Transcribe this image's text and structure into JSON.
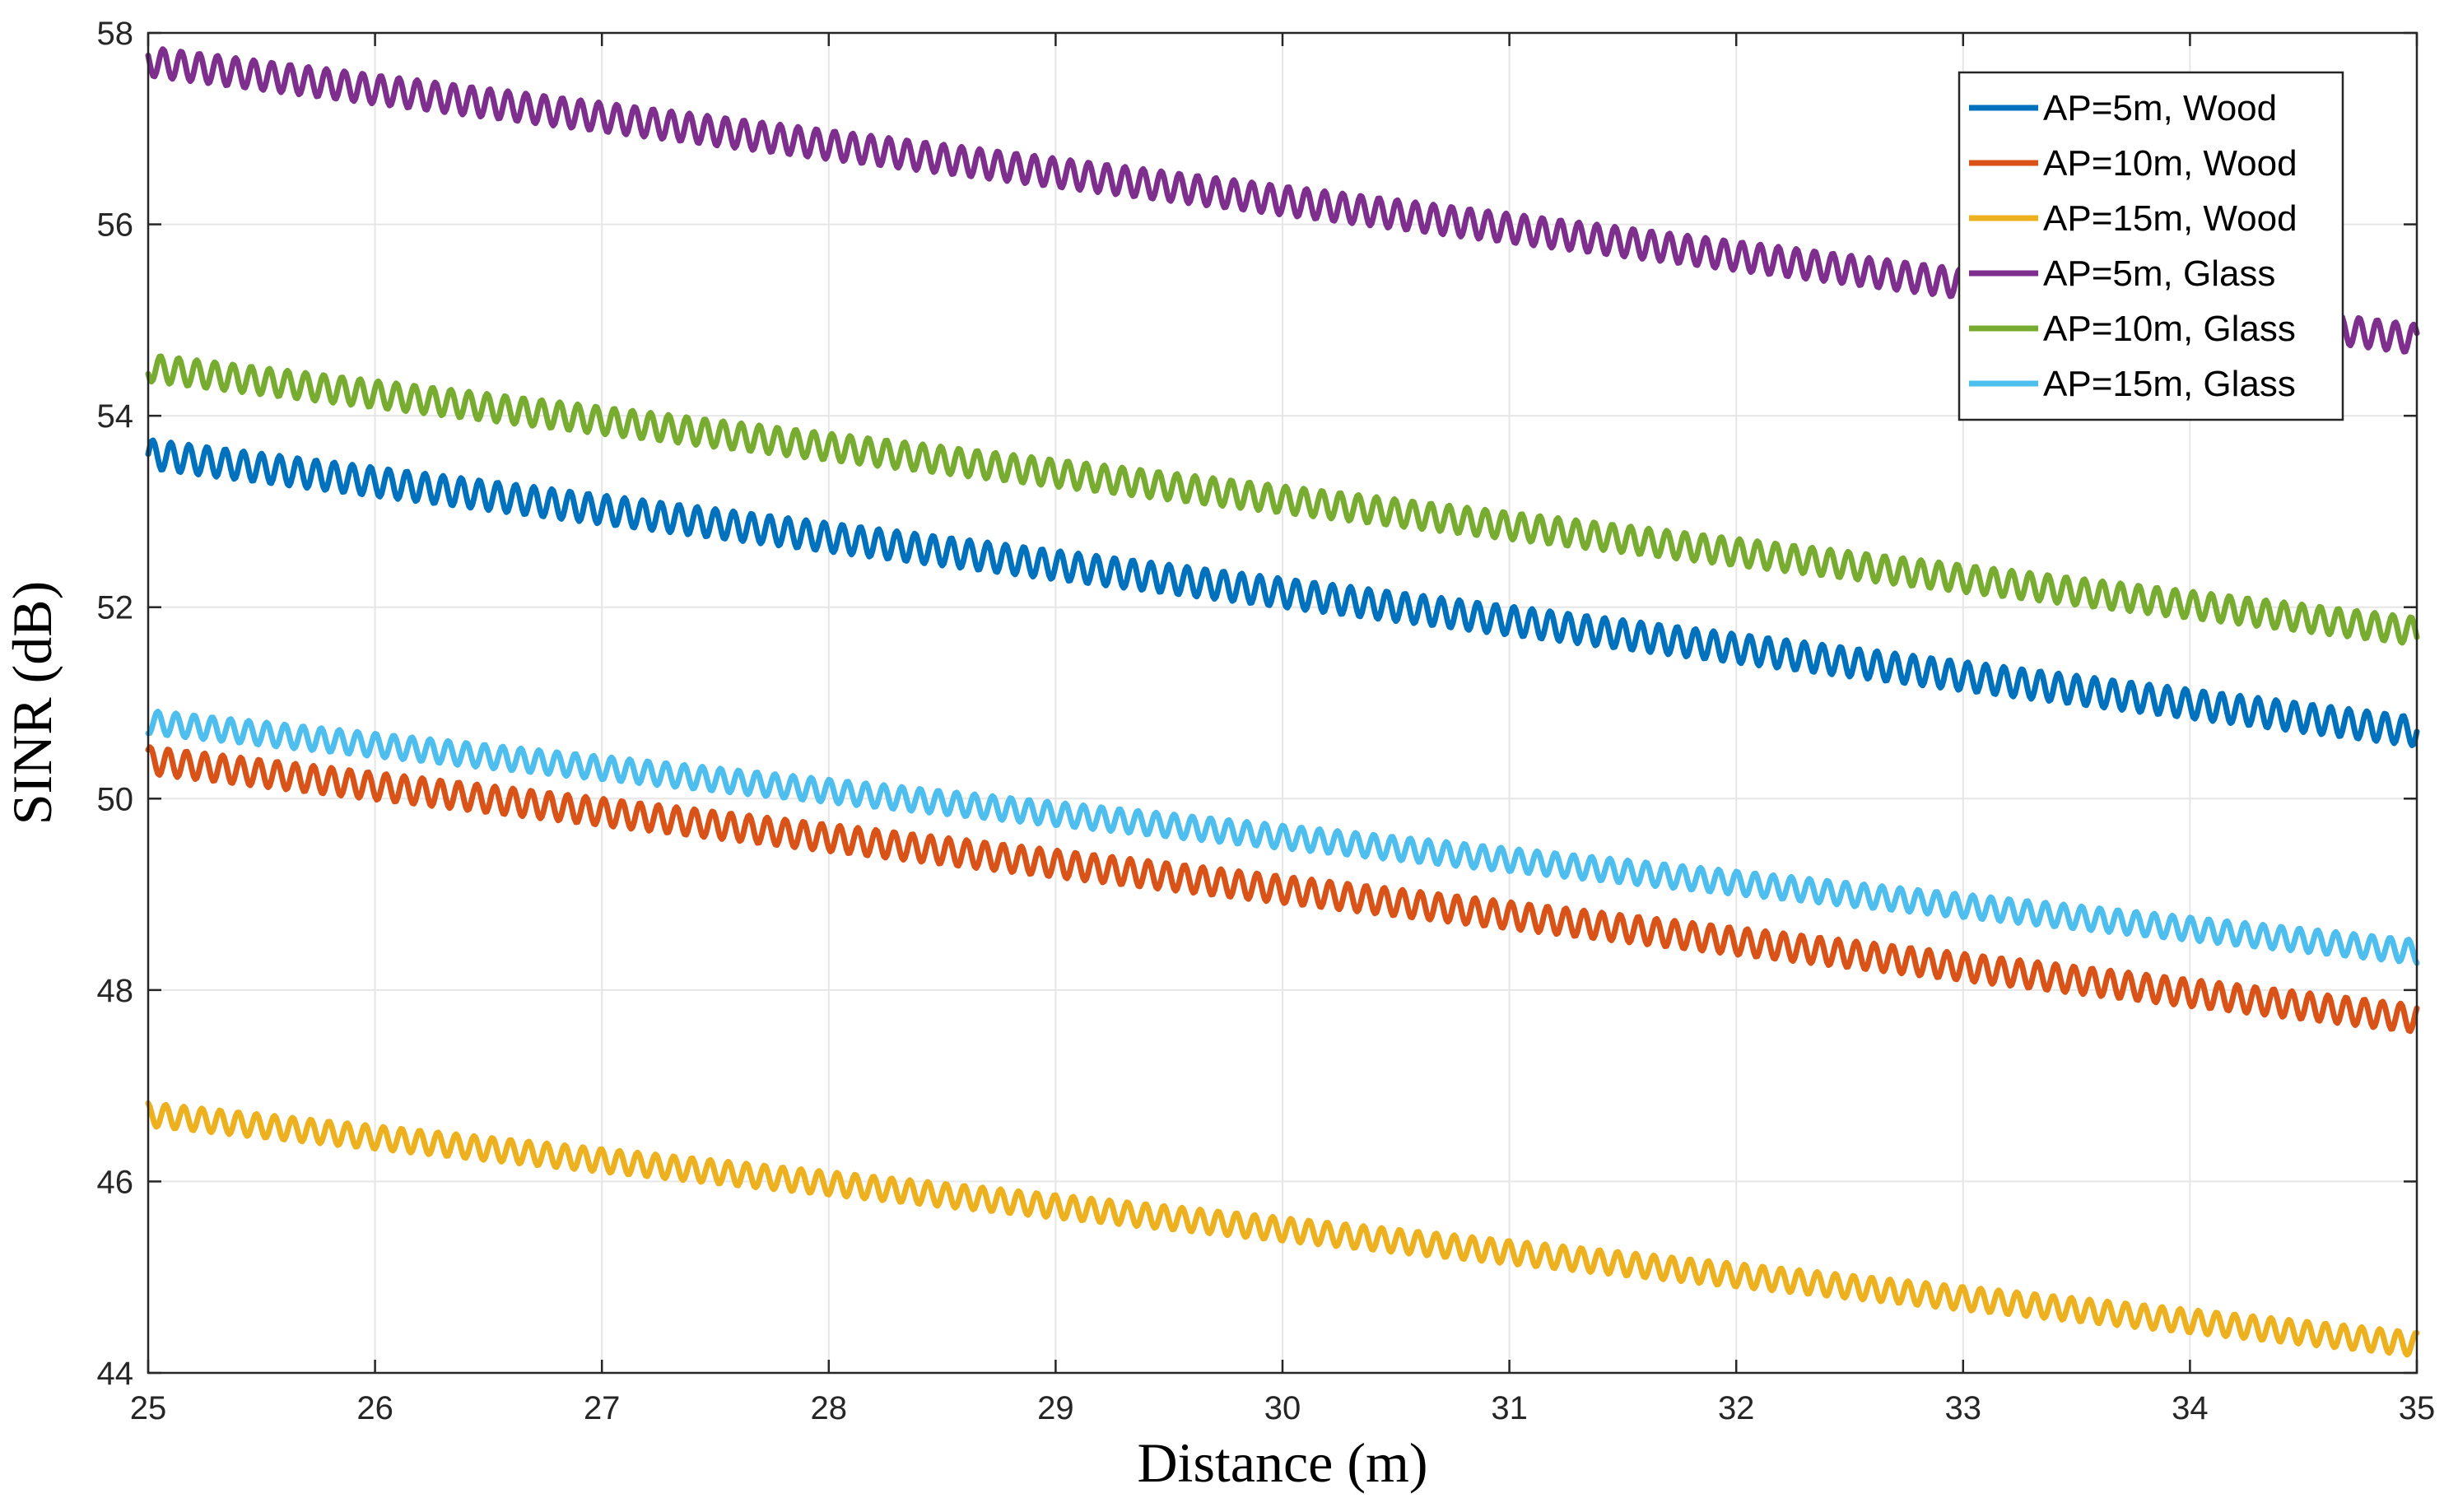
{
  "chart_data": {
    "type": "line",
    "title": "",
    "xlabel": "Distance (m)",
    "ylabel": "SINR (dB)",
    "xlim": [
      25,
      35
    ],
    "ylim": [
      44,
      58
    ],
    "xticks": [
      25,
      26,
      27,
      28,
      29,
      30,
      31,
      32,
      33,
      34,
      35
    ],
    "yticks": [
      44,
      46,
      48,
      50,
      52,
      54,
      56,
      58
    ],
    "grid": true,
    "legend_position": "top-right",
    "series": [
      {
        "name": "AP=5m, Wood",
        "color": "#0072BD",
        "x": [
          25,
          35
        ],
        "values": [
          53.6,
          50.7
        ],
        "ripple_db": 0.15
      },
      {
        "name": "AP=10m, Wood",
        "color": "#D95319",
        "x": [
          25,
          35
        ],
        "values": [
          50.4,
          47.7
        ],
        "ripple_db": 0.14
      },
      {
        "name": "AP=15m, Wood",
        "color": "#EDB120",
        "x": [
          25,
          35
        ],
        "values": [
          46.7,
          44.3
        ],
        "ripple_db": 0.12
      },
      {
        "name": "AP=5m, Glass",
        "color": "#7E2F8E",
        "x": [
          25,
          35
        ],
        "values": [
          57.7,
          54.8
        ],
        "ripple_db": 0.15
      },
      {
        "name": "AP=10m, Glass",
        "color": "#77AC30",
        "x": [
          25,
          35
        ],
        "values": [
          54.5,
          51.75
        ],
        "ripple_db": 0.14
      },
      {
        "name": "AP=15m, Glass",
        "color": "#4DBEEE",
        "x": [
          25,
          35
        ],
        "values": [
          50.8,
          48.4
        ],
        "ripple_db": 0.12
      }
    ]
  }
}
